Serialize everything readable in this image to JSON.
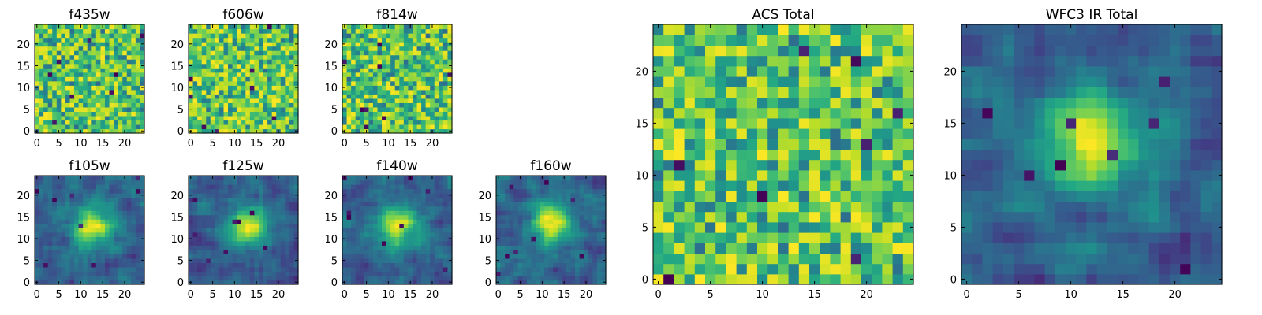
{
  "chart_data": [
    {
      "type": "heatmap",
      "title": "f435w",
      "structure": "noise",
      "seed": 11,
      "grid_size": 25,
      "xticks": [
        0,
        5,
        10,
        15,
        20
      ],
      "yticks": [
        0,
        5,
        10,
        15,
        20
      ],
      "colormap": "viridis"
    },
    {
      "type": "heatmap",
      "title": "f606w",
      "structure": "noise",
      "seed": 23,
      "grid_size": 25,
      "xticks": [
        0,
        5,
        10,
        15,
        20
      ],
      "yticks": [
        0,
        5,
        10,
        15,
        20
      ],
      "colormap": "viridis"
    },
    {
      "type": "heatmap",
      "title": "f814w",
      "structure": "noise",
      "seed": 37,
      "grid_size": 25,
      "xticks": [
        0,
        5,
        10,
        15,
        20
      ],
      "yticks": [
        0,
        5,
        10,
        15,
        20
      ],
      "colormap": "viridis"
    },
    {
      "type": "heatmap",
      "title": "f105w",
      "structure": "blob",
      "seed": 41,
      "grid_size": 25,
      "xticks": [
        0,
        5,
        10,
        15,
        20
      ],
      "yticks": [
        0,
        5,
        10,
        15,
        20
      ],
      "colormap": "viridis"
    },
    {
      "type": "heatmap",
      "title": "f125w",
      "structure": "blob",
      "seed": 53,
      "grid_size": 25,
      "xticks": [
        0,
        5,
        10,
        15,
        20
      ],
      "yticks": [
        0,
        5,
        10,
        15,
        20
      ],
      "colormap": "viridis"
    },
    {
      "type": "heatmap",
      "title": "f140w",
      "structure": "blob",
      "seed": 67,
      "grid_size": 25,
      "xticks": [
        0,
        5,
        10,
        15,
        20
      ],
      "yticks": [
        0,
        5,
        10,
        15,
        20
      ],
      "colormap": "viridis"
    },
    {
      "type": "heatmap",
      "title": "f160w",
      "structure": "blob",
      "seed": 79,
      "grid_size": 25,
      "xticks": [
        0,
        5,
        10,
        15,
        20
      ],
      "yticks": [
        0,
        5,
        10,
        15,
        20
      ],
      "colormap": "viridis"
    },
    {
      "type": "heatmap",
      "title": "ACS Total",
      "structure": "noise",
      "seed": 83,
      "grid_size": 25,
      "xticks": [
        0,
        5,
        10,
        15,
        20
      ],
      "yticks": [
        0,
        5,
        10,
        15,
        20
      ],
      "colormap": "viridis"
    },
    {
      "type": "heatmap",
      "title": "WFC3 IR Total",
      "structure": "blob",
      "seed": 97,
      "grid_size": 25,
      "xticks": [
        0,
        5,
        10,
        15,
        20
      ],
      "yticks": [
        0,
        5,
        10,
        15,
        20
      ],
      "colormap": "viridis"
    }
  ]
}
